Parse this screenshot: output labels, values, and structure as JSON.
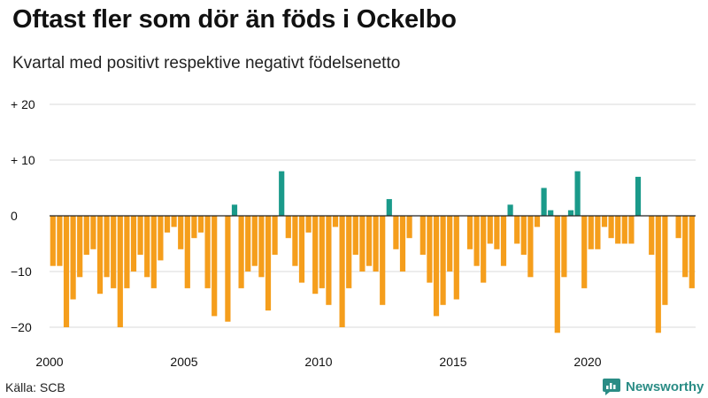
{
  "title": "Oftast fler som dör än föds i Ockelbo",
  "subtitle": "Kvartal med positivt respektive negativt födelsenetto",
  "source": "Källa: SCB",
  "brand": "Newsworthy",
  "colors": {
    "positive": "#1a9a8a",
    "negative": "#f59e1c",
    "brand": "#2a8c85",
    "grid": "#d9d9d9",
    "zero": "#222222"
  },
  "icons": {
    "logo": "chart-bubble-icon"
  },
  "chart_data": {
    "type": "bar",
    "title": "Oftast fler som dör än föds i Ockelbo",
    "subtitle": "Kvartal med positivt respektive negativt födelsenetto",
    "xlabel": "",
    "ylabel": "",
    "ylim": [
      -23,
      22
    ],
    "grid": true,
    "start_year": 2000,
    "periods_per_year": 4,
    "y_ticks": [
      {
        "value": 20,
        "label": "+ 20"
      },
      {
        "value": 10,
        "label": "+ 10"
      },
      {
        "value": 0,
        "label": "0"
      },
      {
        "value": -10,
        "label": "−10"
      },
      {
        "value": -20,
        "label": "−20"
      }
    ],
    "x_ticks": [
      {
        "index": 0,
        "label": "2000"
      },
      {
        "index": 20,
        "label": "2005"
      },
      {
        "index": 40,
        "label": "2010"
      },
      {
        "index": 60,
        "label": "2015"
      },
      {
        "index": 80,
        "label": "2020"
      }
    ],
    "values": [
      -9,
      -9,
      -20,
      -15,
      -11,
      -7,
      -6,
      -14,
      -11,
      -13,
      -20,
      -13,
      -10,
      -7,
      -11,
      -13,
      -8,
      -3,
      -2,
      -6,
      -13,
      -4,
      -3,
      -13,
      -18,
      0,
      -19,
      2,
      -13,
      -10,
      -9,
      -11,
      -17,
      -7,
      8,
      -4,
      -9,
      -12,
      -3,
      -14,
      -13,
      -16,
      -2,
      -20,
      -13,
      -7,
      -10,
      -9,
      -10,
      -16,
      3,
      -6,
      -10,
      -4,
      0,
      -7,
      -12,
      -18,
      -16,
      -10,
      -15,
      0,
      -6,
      -9,
      -12,
      -5,
      -6,
      -9,
      2,
      -5,
      -7,
      -11,
      -2,
      5,
      1,
      -21,
      -11,
      1,
      8,
      -13,
      -6,
      -6,
      -2,
      -4,
      -5,
      -5,
      -5,
      7,
      0,
      -7,
      -21,
      -16,
      0,
      -4,
      -11,
      -13
    ]
  }
}
